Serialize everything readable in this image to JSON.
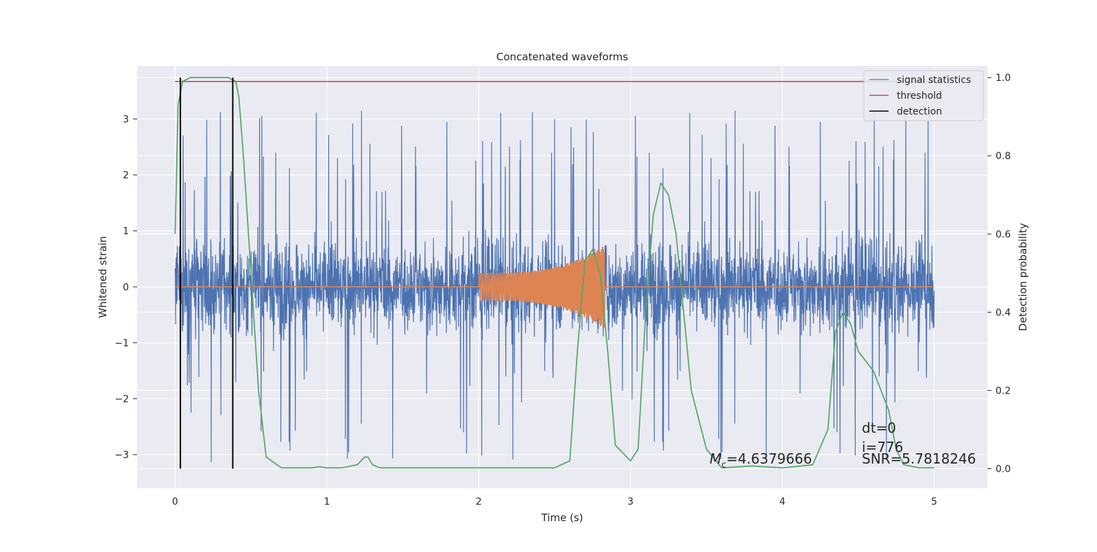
{
  "chart_data": {
    "type": "line",
    "title": "Concatenated waveforms",
    "xlabel": "Time (s)",
    "ylabel": "Whitened strain",
    "y2label": "Detection probability",
    "xlim": [
      -0.25,
      5.35
    ],
    "ylim": [
      -3.6,
      3.95
    ],
    "y2lim": [
      -0.05,
      1.03
    ],
    "xticks": [
      0,
      1,
      2,
      3,
      4,
      5
    ],
    "yticks": [
      -3,
      -2,
      -1,
      0,
      1,
      2,
      3
    ],
    "y2ticks": [
      0.0,
      0.2,
      0.4,
      0.6,
      0.8,
      1.0
    ],
    "xtick_labels": [
      "0",
      "1",
      "2",
      "3",
      "4",
      "5"
    ],
    "ytick_labels": [
      "−3",
      "−2",
      "−1",
      "0",
      "1",
      "2",
      "3"
    ],
    "y2tick_labels": [
      "0.0",
      "0.2",
      "0.4",
      "0.6",
      "0.8",
      "1.0"
    ],
    "grid": true,
    "legend_position": "top-right",
    "series": [
      {
        "name": "",
        "kind": "noise",
        "axis": "left",
        "color": "#4c72b0",
        "x_start": 0,
        "x_end": 5,
        "core_amplitude": 1.0,
        "peak_amplitude": 3.2
      },
      {
        "name": "",
        "kind": "chirp",
        "axis": "left",
        "color": "#dd8452",
        "x_start": 2.0,
        "x_end": 2.83,
        "amplitude_start": 0.25,
        "amplitude_peak": 0.75
      },
      {
        "name": "signal statistics",
        "axis": "right",
        "color": "#55a868",
        "x": [
          0,
          0.02,
          0.05,
          0.1,
          0.2,
          0.3,
          0.35,
          0.4,
          0.42,
          0.45,
          0.5,
          0.55,
          0.6,
          0.7,
          0.9,
          0.95,
          1.0,
          1.1,
          1.2,
          1.25,
          1.27,
          1.3,
          1.35,
          1.5,
          2.0,
          2.5,
          2.6,
          2.65,
          2.7,
          2.75,
          2.8,
          2.85,
          2.9,
          3.0,
          3.05,
          3.1,
          3.15,
          3.2,
          3.25,
          3.3,
          3.35,
          3.4,
          3.5,
          3.6,
          3.8,
          4.0,
          4.2,
          4.3,
          4.35,
          4.4,
          4.45,
          4.5,
          4.6,
          4.7,
          4.75,
          4.8,
          4.9,
          5.0
        ],
        "y": [
          0.6,
          0.93,
          0.99,
          1.0,
          1.0,
          1.0,
          1.0,
          0.99,
          0.95,
          0.8,
          0.5,
          0.2,
          0.03,
          0.002,
          0.002,
          0.005,
          0.002,
          0.002,
          0.01,
          0.03,
          0.03,
          0.01,
          0.002,
          0.002,
          0.002,
          0.002,
          0.02,
          0.3,
          0.53,
          0.56,
          0.5,
          0.3,
          0.06,
          0.02,
          0.05,
          0.4,
          0.65,
          0.73,
          0.7,
          0.6,
          0.4,
          0.2,
          0.05,
          0.002,
          0.007,
          0.002,
          0.01,
          0.1,
          0.35,
          0.4,
          0.37,
          0.3,
          0.25,
          0.15,
          0.05,
          0.01,
          0.002,
          0.002
        ]
      },
      {
        "name": "threshold",
        "axis": "right",
        "color": "#c44e52",
        "x": [
          0,
          5.0
        ],
        "y": [
          0.99,
          0.99
        ]
      },
      {
        "name": "detection",
        "axis": "right",
        "color": "#000000",
        "x": [
          0.035,
          0.38
        ],
        "y_range": [
          0.0,
          1.0
        ]
      }
    ],
    "annotations": {
      "mc_symbol": "M",
      "mc_subscript": "c",
      "mc_value": "=4.6379666",
      "dt": "dt=0",
      "i": "i=776",
      "snr": "SNR=5.7818246"
    }
  }
}
